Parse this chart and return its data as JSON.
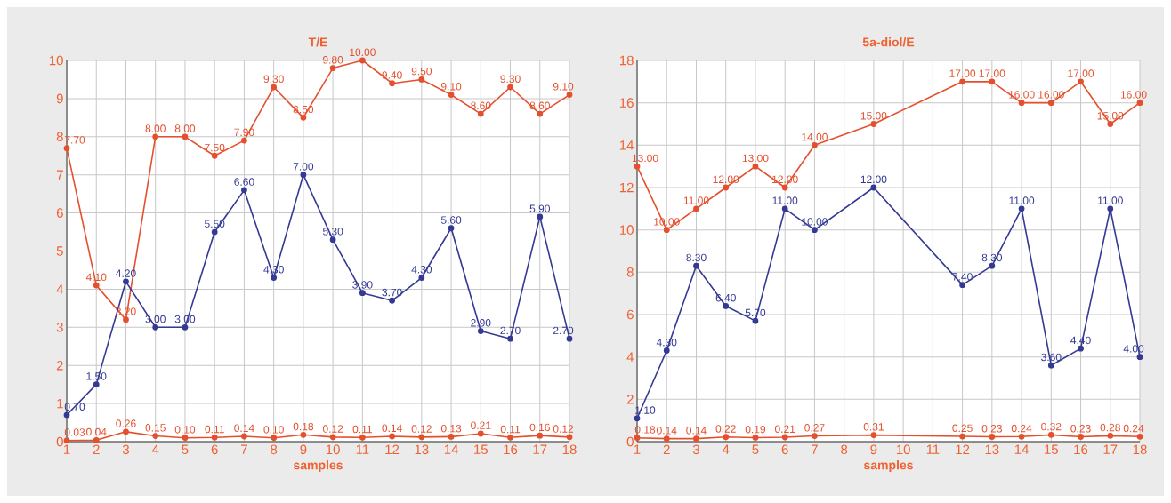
{
  "chart_data": [
    {
      "type": "line",
      "title": "T/E",
      "xlabel": "samples",
      "x": [
        1,
        2,
        3,
        4,
        5,
        6,
        7,
        8,
        9,
        10,
        11,
        12,
        13,
        14,
        15,
        16,
        17,
        18
      ],
      "xlim": [
        1,
        18
      ],
      "xticks": [
        1,
        2,
        3,
        4,
        5,
        6,
        7,
        8,
        9,
        10,
        11,
        12,
        13,
        14,
        15,
        16,
        17,
        18
      ],
      "ylim": [
        0,
        10
      ],
      "yticks": [
        0,
        1,
        2,
        3,
        4,
        5,
        6,
        7,
        8,
        9,
        10
      ],
      "grid": true,
      "marker": "circle",
      "line_style": "solid",
      "series": [
        {
          "color": "#e4502e",
          "values": [
            7.7,
            4.1,
            3.2,
            8.0,
            8.0,
            7.5,
            7.9,
            9.3,
            8.5,
            9.8,
            10.0,
            9.4,
            9.5,
            9.1,
            8.6,
            9.3,
            8.6,
            9.1
          ],
          "value_labels": [
            "7.70",
            "4.10",
            "3.20",
            "8.00",
            "8.00",
            "7.50",
            "7.90",
            "9.30",
            "8.50",
            "9.80",
            "10.00",
            "9.40",
            "9.50",
            "9.10",
            "8.60",
            "9.30",
            "8.60",
            "9.10"
          ]
        },
        {
          "color": "#343a94",
          "values": [
            0.7,
            1.5,
            4.2,
            3.0,
            3.0,
            5.5,
            6.6,
            4.3,
            7.0,
            5.3,
            3.9,
            3.7,
            4.3,
            5.6,
            2.9,
            2.7,
            5.9,
            2.7
          ],
          "value_labels": [
            "0.70",
            "1.50",
            "4.20",
            "3.00",
            "3.00",
            "5.50",
            "6.60",
            "4.30",
            "7.00",
            "5.30",
            "3.90",
            "3.70",
            "4.30",
            "5.60",
            "2.90",
            "2.70",
            "5.90",
            "2.70"
          ]
        },
        {
          "color": "#e4502e",
          "values": [
            0.03,
            0.04,
            0.26,
            0.15,
            0.1,
            0.11,
            0.14,
            0.1,
            0.18,
            0.12,
            0.11,
            0.14,
            0.12,
            0.13,
            0.21,
            0.11,
            0.16,
            0.12
          ],
          "value_labels": [
            "0.03",
            "0.04",
            "0.26",
            "0.15",
            "0.10",
            "0.11",
            "0.14",
            "0.10",
            "0.18",
            "0.12",
            "0.11",
            "0.14",
            "0.12",
            "0.13",
            "0.21",
            "0.11",
            "0.16",
            "0.12"
          ]
        }
      ]
    },
    {
      "type": "line",
      "title": "5a-diol/E",
      "xlabel": "samples",
      "xlim": [
        1,
        18
      ],
      "xticks": [
        1,
        2,
        3,
        4,
        5,
        6,
        7,
        8,
        9,
        10,
        11,
        12,
        13,
        14,
        15,
        16,
        17,
        18
      ],
      "ylim": [
        0,
        18
      ],
      "yticks": [
        0,
        2,
        4,
        6,
        8,
        10,
        12,
        14,
        16,
        18
      ],
      "grid": true,
      "marker": "circle",
      "line_style": "solid",
      "series": [
        {
          "color": "#e4502e",
          "x": [
            1,
            2,
            3,
            4,
            5,
            6,
            7,
            9,
            12,
            13,
            14,
            15,
            16,
            17,
            18
          ],
          "values": [
            13,
            10,
            11,
            12,
            13,
            12,
            14,
            15,
            17,
            17,
            16,
            16,
            17,
            15,
            16
          ],
          "value_labels": [
            "13.00",
            "10.00",
            "11.00",
            "12.00",
            "13.00",
            "12.00",
            "14.00",
            "15.00",
            "17.00",
            "17.00",
            "16.00",
            "16.00",
            "17.00",
            "15.00",
            "16.00"
          ]
        },
        {
          "color": "#343a94",
          "x": [
            1,
            2,
            3,
            4,
            5,
            6,
            7,
            9,
            12,
            13,
            14,
            15,
            16,
            17,
            18
          ],
          "values": [
            1.1,
            4.3,
            8.3,
            6.4,
            5.7,
            11.0,
            10.0,
            12.0,
            7.4,
            8.3,
            11.0,
            3.6,
            4.4,
            11.0,
            4.0
          ],
          "value_labels": [
            "1.10",
            "4.30",
            "8.30",
            "6.40",
            "5.70",
            "11.00",
            "10.00",
            "12.00",
            "7.40",
            "8.30",
            "11.00",
            "3.60",
            "4.40",
            "11.00",
            "4.00"
          ]
        },
        {
          "color": "#e4502e",
          "x": [
            1,
            2,
            3,
            4,
            5,
            6,
            7,
            9,
            12,
            13,
            14,
            15,
            16,
            17,
            18
          ],
          "values": [
            0.18,
            0.14,
            0.14,
            0.22,
            0.19,
            0.21,
            0.27,
            0.31,
            0.25,
            0.23,
            0.24,
            0.32,
            0.23,
            0.28,
            0.24
          ],
          "value_labels": [
            "0.18",
            "0.14",
            "0.14",
            "0.22",
            "0.19",
            "0.21",
            "0.27",
            "0.31",
            "0.25",
            "0.23",
            "0.24",
            "0.32",
            "0.23",
            "0.28",
            "0.24"
          ]
        }
      ]
    }
  ]
}
